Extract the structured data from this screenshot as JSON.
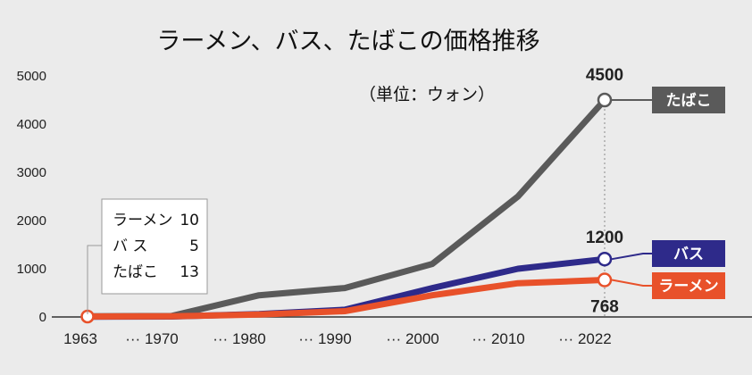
{
  "chart_data": {
    "type": "line",
    "title": "ラーメン、バス、たばこの価格推移",
    "unit_label": "（単位：ウォン）",
    "x": [
      "1963",
      "1970",
      "1980",
      "1990",
      "2000",
      "2010",
      "2022"
    ],
    "x_tick_labels": [
      "1963",
      "··· 1970",
      "··· 1980",
      "··· 1990",
      "··· 2000",
      "··· 2010",
      "··· 2022"
    ],
    "y_ticks": [
      "0",
      "1000",
      "2000",
      "3000",
      "4000",
      "5000"
    ],
    "ylim": [
      0,
      5000
    ],
    "grid": false,
    "series": [
      {
        "name": "たばこ",
        "color": "#5a5a5a",
        "values": [
          13,
          20,
          450,
          600,
          1100,
          2500,
          4500
        ]
      },
      {
        "name": "バス",
        "color": "#2e2a8a",
        "values": [
          5,
          10,
          60,
          150,
          600,
          1000,
          1200
        ]
      },
      {
        "name": "ラーメン",
        "color": "#e8512a",
        "values": [
          10,
          15,
          50,
          120,
          450,
          700,
          768
        ]
      }
    ],
    "end_value_labels": [
      "4500",
      "1200",
      "768"
    ],
    "start_note": {
      "lines": [
        {
          "name": "ラーメン",
          "value": "10"
        },
        {
          "name": "バ ス",
          "value": "5"
        },
        {
          "name": "たばこ",
          "value": "13"
        }
      ]
    }
  }
}
